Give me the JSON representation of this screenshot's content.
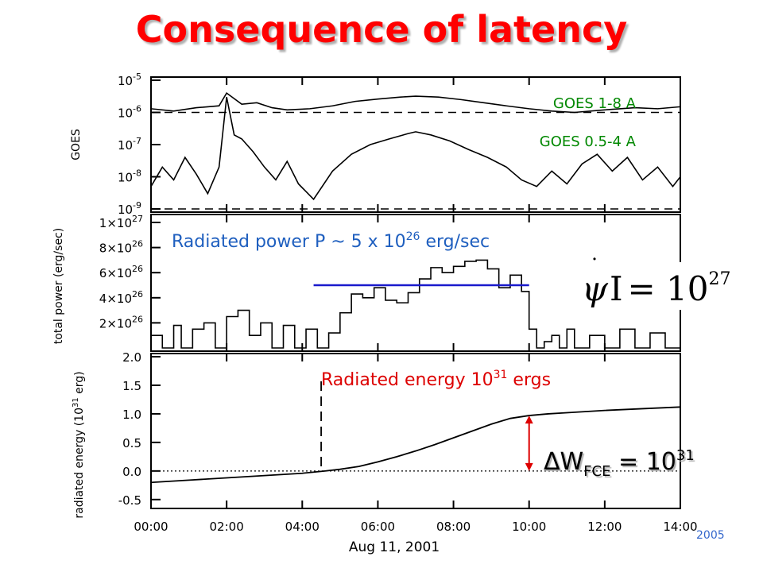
{
  "title": "Consequence of latency",
  "footnote": "2005",
  "chart_data": [
    {
      "panel": "goes",
      "type": "line",
      "ylabel": "GOES",
      "yscale": "log",
      "ylim": [
        1e-09,
        1e-05
      ],
      "ytick_labels": [
        "10^-5",
        "10^-6",
        "10^-7",
        "10^-8",
        "10^-9"
      ],
      "xlim": [
        0,
        14
      ],
      "series": [
        {
          "name": "GOES 1-8 A",
          "color": "#008800",
          "x": [
            0,
            0.6,
            1.2,
            1.8,
            2.0,
            2.4,
            2.8,
            3.2,
            3.6,
            4.2,
            4.8,
            5.4,
            6.0,
            6.6,
            7.0,
            7.6,
            8.2,
            8.8,
            9.4,
            10.0,
            10.6,
            11.2,
            12.0,
            12.8,
            13.4,
            14.0
          ],
          "y": [
            1.3e-06,
            1.1e-06,
            1.4e-06,
            1.6e-06,
            4e-06,
            1.8e-06,
            2e-06,
            1.4e-06,
            1.2e-06,
            1.3e-06,
            1.6e-06,
            2.2e-06,
            2.6e-06,
            3e-06,
            3.2e-06,
            3e-06,
            2.5e-06,
            2e-06,
            1.6e-06,
            1.3e-06,
            1.1e-06,
            1e-06,
            1.2e-06,
            1.4e-06,
            1.3e-06,
            1.5e-06
          ]
        },
        {
          "name": "GOES 0.5-4 A",
          "color": "#008800",
          "x": [
            0,
            0.3,
            0.6,
            0.9,
            1.2,
            1.5,
            1.8,
            2.0,
            2.2,
            2.4,
            2.7,
            3.0,
            3.3,
            3.6,
            3.9,
            4.3,
            4.8,
            5.3,
            5.8,
            6.3,
            6.8,
            7.0,
            7.4,
            7.9,
            8.4,
            8.9,
            9.4,
            9.8,
            10.2,
            10.6,
            11.0,
            11.4,
            11.8,
            12.2,
            12.6,
            13.0,
            13.4,
            13.8,
            14.0
          ],
          "y": [
            5e-09,
            2e-08,
            8e-09,
            4e-08,
            1.2e-08,
            3e-09,
            2e-08,
            3e-06,
            2e-07,
            1.5e-07,
            6e-08,
            2e-08,
            8e-09,
            3e-08,
            6e-09,
            2e-09,
            1.5e-08,
            5e-08,
            1e-07,
            1.5e-07,
            2.2e-07,
            2.5e-07,
            2e-07,
            1.3e-07,
            7e-08,
            4e-08,
            2e-08,
            8e-09,
            5e-09,
            1.5e-08,
            6e-09,
            2.5e-08,
            5e-08,
            1.5e-08,
            4e-08,
            8e-09,
            2e-08,
            5e-09,
            1e-08
          ]
        }
      ],
      "baseline_levels": [
        1e-06,
        1e-09
      ]
    },
    {
      "panel": "power",
      "type": "line",
      "ylabel": "total power (erg/sec)",
      "ylim": [
        0,
        1e+27
      ],
      "ytick_labels": [
        "1×10^27",
        "8×10^26",
        "6×10^26",
        "4×10^26",
        "2×10^26"
      ],
      "xlim": [
        0,
        14
      ],
      "series": [
        {
          "name": "total power",
          "color": "#000000",
          "x": [
            0,
            0.3,
            0.6,
            0.8,
            1.1,
            1.4,
            1.7,
            2.0,
            2.3,
            2.6,
            2.9,
            3.2,
            3.5,
            3.8,
            4.1,
            4.4,
            4.7,
            5.0,
            5.3,
            5.6,
            5.9,
            6.2,
            6.5,
            6.8,
            7.1,
            7.4,
            7.7,
            8.0,
            8.3,
            8.6,
            8.9,
            9.2,
            9.5,
            9.8,
            10.0,
            10.2,
            10.4,
            10.6,
            10.8,
            11.0,
            11.2,
            11.6,
            12.0,
            12.4,
            12.8,
            13.2,
            13.6,
            14.0
          ],
          "y": [
            1e+26,
            0,
            1.8e+26,
            0,
            1.5e+26,
            2e+26,
            0,
            2.5e+26,
            3e+26,
            1e+26,
            2e+26,
            0,
            1.8e+26,
            0,
            1.5e+26,
            0,
            1.2e+26,
            2.8e+26,
            4.3e+26,
            4e+26,
            4.8e+26,
            3.8e+26,
            3.6e+26,
            4.4e+26,
            5.5e+26,
            6.4e+26,
            6e+26,
            6.5e+26,
            6.9e+26,
            7e+26,
            6.3e+26,
            4.8e+26,
            5.8e+26,
            4.5e+26,
            1.5e+26,
            0,
            5e+25,
            1e+26,
            0,
            1.5e+26,
            0,
            1e+26,
            0,
            1.5e+26,
            0,
            1.2e+26,
            0,
            1e+26
          ]
        }
      ],
      "annotation_text": "Radiated power P ~ 5 x 10^26 erg/sec",
      "reference_level": 5e+26,
      "reference_xrange": [
        4.3,
        10.0
      ],
      "equation": "ψ̇ I = 10^27"
    },
    {
      "panel": "energy",
      "type": "line",
      "ylabel": "radiated energy (10^31 erg)",
      "ylim": [
        -0.6,
        2.0
      ],
      "yticks": [
        2.0,
        1.5,
        1.0,
        0.5,
        0.0,
        -0.5
      ],
      "ytick_labels": [
        "2.0",
        "1.5",
        "1.0",
        "0.5",
        "0.0",
        "-0.5"
      ],
      "xlim": [
        0,
        14
      ],
      "xticks": [
        0,
        2,
        4,
        6,
        8,
        10,
        12,
        14
      ],
      "xtick_labels": [
        "00:00",
        "02:00",
        "04:00",
        "06:00",
        "08:00",
        "10:00",
        "12:00",
        "14:00"
      ],
      "xlabel": "Aug 11, 2001",
      "series": [
        {
          "name": "radiated energy",
          "color": "#000000",
          "x": [
            0,
            1,
            2,
            3,
            4,
            4.6,
            5.0,
            5.5,
            6.0,
            6.5,
            7.0,
            7.5,
            8.0,
            8.5,
            9.0,
            9.5,
            10.0,
            10.5,
            11,
            12,
            13,
            14
          ],
          "y": [
            -0.2,
            -0.16,
            -0.12,
            -0.08,
            -0.04,
            0.0,
            0.03,
            0.08,
            0.16,
            0.25,
            0.35,
            0.46,
            0.58,
            0.7,
            0.82,
            0.92,
            0.97,
            1.0,
            1.02,
            1.06,
            1.09,
            1.12
          ]
        }
      ],
      "event_marker_x": 4.5,
      "annotation_text": "Radiated energy 10^31 ergs",
      "delta_label": "ΔW_FCE = 10^31",
      "delta_x": 10.0,
      "delta_range": [
        0.0,
        0.97
      ]
    }
  ],
  "labels": {
    "goes_1_8": "GOES 1-8 A",
    "goes_05_4": "GOES 0.5-4 A",
    "power_pre": "Radiated power P ~ 5 x 10",
    "power_exp": "26",
    "power_post": " erg/sec",
    "energy_pre": "Radiated energy 10",
    "energy_exp": "31",
    "energy_post": " ergs",
    "dw_main": "ΔW",
    "dw_sub": "FCE",
    "dw_eq": " = 10",
    "dw_exp": "31",
    "eq_lhs_char": "ψ",
    "eq_i": "I",
    "eq_rhs": "= 10",
    "eq_exp": "27",
    "goes_ylabel": "GOES",
    "power_ylabel_a": "total power (erg/sec)",
    "energy_ylabel": "radiated energy (10",
    "energy_ylabel_exp": "31",
    "energy_ylabel_post": " erg)",
    "xlabel": "Aug 11, 2001"
  }
}
